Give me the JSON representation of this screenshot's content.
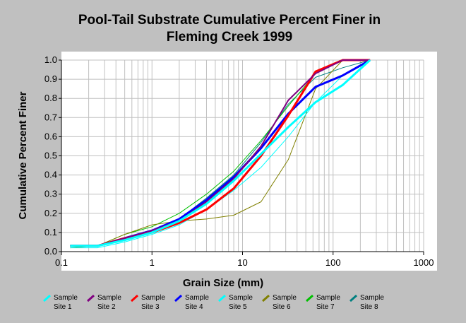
{
  "chart_data": {
    "type": "line",
    "title_line1": "Pool-Tail Substrate Cumulative Percent Finer in",
    "title_line2": "Fleming Creek 1999",
    "xlabel": "Grain Size (mm)",
    "ylabel": "Cumulative Percent Finer",
    "xscale": "log",
    "xlim": [
      0.1,
      1000
    ],
    "ylim": [
      0,
      1
    ],
    "x_ticks": [
      "0.1",
      "1",
      "10",
      "100",
      "1000"
    ],
    "y_ticks": [
      "0.0",
      "0.1",
      "0.2",
      "0.3",
      "0.4",
      "0.5",
      "0.6",
      "0.7",
      "0.8",
      "0.9",
      "1.0"
    ],
    "grid": true,
    "legend_position": "bottom",
    "series": [
      {
        "name_line1": "Sample",
        "name_line2": "Site 1",
        "color": "#00ffff",
        "width": 3,
        "x": [
          0.125,
          0.25,
          0.5,
          1,
          2,
          4,
          8,
          16,
          32,
          64,
          128,
          256
        ],
        "y": [
          0.03,
          0.03,
          0.06,
          0.1,
          0.16,
          0.25,
          0.37,
          0.51,
          0.65,
          0.78,
          0.87,
          1.0
        ]
      },
      {
        "name_line1": "Sample",
        "name_line2": "Site 2",
        "color": "#800080",
        "width": 2,
        "x": [
          0.125,
          0.25,
          0.5,
          1,
          2,
          4,
          8,
          16,
          32,
          64,
          128,
          256
        ],
        "y": [
          0.03,
          0.03,
          0.07,
          0.11,
          0.16,
          0.26,
          0.38,
          0.55,
          0.79,
          0.93,
          1.0,
          1.0
        ]
      },
      {
        "name_line1": "Sample",
        "name_line2": "Site 3",
        "color": "#ff0000",
        "width": 3,
        "x": [
          0.125,
          0.25,
          0.5,
          1,
          2,
          4,
          8,
          16,
          32,
          64,
          128,
          256
        ],
        "y": [
          0.03,
          0.03,
          0.07,
          0.1,
          0.15,
          0.22,
          0.33,
          0.5,
          0.71,
          0.94,
          1.0,
          1.0
        ]
      },
      {
        "name_line1": "Sample",
        "name_line2": "Site 4",
        "color": "#0000ff",
        "width": 3,
        "x": [
          0.125,
          0.25,
          0.5,
          1,
          2,
          4,
          8,
          16,
          32,
          64,
          128,
          256
        ],
        "y": [
          0.03,
          0.03,
          0.07,
          0.11,
          0.17,
          0.27,
          0.39,
          0.54,
          0.72,
          0.86,
          0.92,
          1.0
        ]
      },
      {
        "name_line1": "Sample",
        "name_line2": "Site 5",
        "color": "#00ffff",
        "width": 1,
        "x": [
          0.125,
          0.25,
          0.5,
          1,
          2,
          4,
          8,
          16,
          32,
          64,
          128,
          256
        ],
        "y": [
          0.02,
          0.02,
          0.05,
          0.09,
          0.14,
          0.22,
          0.32,
          0.44,
          0.6,
          0.78,
          0.92,
          1.0
        ]
      },
      {
        "name_line1": "Sample",
        "name_line2": "Site 6",
        "color": "#808000",
        "width": 1,
        "x": [
          0.125,
          0.25,
          0.5,
          1,
          2,
          4,
          8,
          16,
          32,
          64,
          128,
          256
        ],
        "y": [
          0.02,
          0.03,
          0.09,
          0.14,
          0.16,
          0.17,
          0.19,
          0.26,
          0.48,
          0.85,
          1.0,
          1.0
        ]
      },
      {
        "name_line1": "Sample",
        "name_line2": "Site 7",
        "color": "#00c000",
        "width": 1,
        "x": [
          0.125,
          0.25,
          0.5,
          1,
          2,
          4,
          8,
          16,
          32,
          64,
          128,
          256
        ],
        "y": [
          0.03,
          0.03,
          0.09,
          0.13,
          0.2,
          0.3,
          0.42,
          0.58,
          0.76,
          0.93,
          1.0,
          1.0
        ]
      },
      {
        "name_line1": "Sample",
        "name_line2": "Site 8",
        "color": "#008080",
        "width": 1,
        "x": [
          0.125,
          0.25,
          0.5,
          1,
          2,
          4,
          8,
          16,
          32,
          64,
          128,
          256
        ],
        "y": [
          0.03,
          0.03,
          0.07,
          0.11,
          0.17,
          0.28,
          0.4,
          0.57,
          0.77,
          0.91,
          0.96,
          1.0
        ]
      }
    ]
  }
}
